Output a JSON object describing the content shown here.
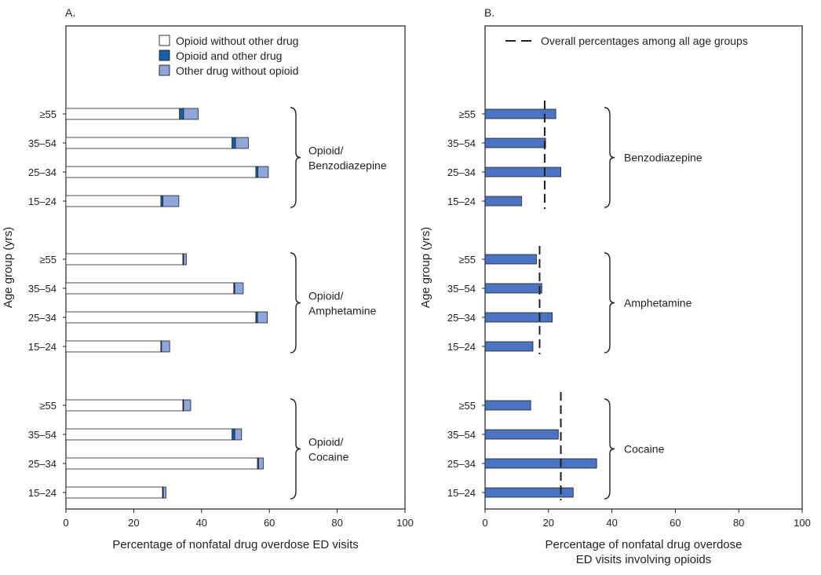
{
  "colors": {
    "opioid_only": "#ffffff",
    "opioid_and_other": "#1760a8",
    "other_only": "#8ea6d9",
    "bar_b": "#4a73c2",
    "stroke": "#231f20"
  },
  "chart_data": [
    {
      "type": "bar",
      "orientation": "horizontal",
      "stacked": true,
      "panel_label": "A.",
      "xlabel": "Percentage of nonfatal drug overdose ED visits",
      "ylabel": "Age group (yrs)",
      "xlim": [
        0,
        100
      ],
      "xticks": [
        0,
        20,
        40,
        60,
        80,
        100
      ],
      "legend": [
        {
          "key": "opioid_only",
          "label": "Opioid without other drug"
        },
        {
          "key": "opioid_and_other",
          "label": "Opioid and other drug"
        },
        {
          "key": "other_only",
          "label": "Other drug without opioid"
        }
      ],
      "groups": [
        {
          "label_lines": [
            "Opioid/",
            "Benzodiazepine"
          ],
          "categories": [
            "≥55",
            "35–54",
            "25–34",
            "15–24"
          ],
          "series": [
            {
              "name": "Opioid without other drug",
              "key": "opioid_only",
              "values": [
                33.5,
                49,
                56,
                28
              ]
            },
            {
              "name": "Opioid and other drug",
              "key": "opioid_and_other",
              "values": [
                1.2,
                1.0,
                0.6,
                0.6
              ]
            },
            {
              "name": "Other drug without opioid",
              "key": "other_only",
              "values": [
                4.3,
                3.8,
                3.1,
                4.7
              ]
            }
          ]
        },
        {
          "label_lines": [
            "Opioid/",
            "Amphetamine"
          ],
          "categories": [
            "≥55",
            "35–54",
            "25–34",
            "15–24"
          ],
          "series": [
            {
              "name": "Opioid without other drug",
              "key": "opioid_only",
              "values": [
                34.5,
                49.5,
                56,
                28
              ]
            },
            {
              "name": "Opioid and other drug",
              "key": "opioid_and_other",
              "values": [
                0.2,
                0.3,
                0.5,
                0.2
              ]
            },
            {
              "name": "Other drug without opioid",
              "key": "other_only",
              "values": [
                0.8,
                2.5,
                2.9,
                2.4
              ]
            }
          ]
        },
        {
          "label_lines": [
            "Opioid/",
            "Cocaine"
          ],
          "categories": [
            "≥55",
            "35–54",
            "25–34",
            "15–24"
          ],
          "series": [
            {
              "name": "Opioid without other drug",
              "key": "opioid_only",
              "values": [
                34.5,
                49,
                56.5,
                28.5
              ]
            },
            {
              "name": "Opioid and other drug",
              "key": "opioid_and_other",
              "values": [
                0.2,
                0.8,
                0.3,
                0.2
              ]
            },
            {
              "name": "Other drug without opioid",
              "key": "other_only",
              "values": [
                2.1,
                2.0,
                1.4,
                0.8
              ]
            }
          ]
        }
      ]
    },
    {
      "type": "bar",
      "orientation": "horizontal",
      "panel_label": "B.",
      "xlabel_lines": [
        "Percentage of nonfatal drug overdose",
        "ED visits involving opioids"
      ],
      "ylabel": "Age group (yrs)",
      "xlim": [
        0,
        100
      ],
      "xticks": [
        0,
        20,
        40,
        60,
        80,
        100
      ],
      "legend": [
        {
          "key": "overall",
          "label": "Overall percentages among all age groups"
        }
      ],
      "groups": [
        {
          "label": "Benzodiazepine",
          "categories": [
            "≥55",
            "35–54",
            "25–34",
            "15–24"
          ],
          "values": [
            22.3,
            19.1,
            23.9,
            11.5
          ],
          "overall": 18.8
        },
        {
          "label": "Amphetamine",
          "categories": [
            "≥55",
            "35–54",
            "25–34",
            "15–24"
          ],
          "values": [
            16.2,
            17.9,
            21.2,
            15.1
          ],
          "overall": 17.2
        },
        {
          "label": "Cocaine",
          "categories": [
            "≥55",
            "35–54",
            "25–34",
            "15–24"
          ],
          "values": [
            14.4,
            23.1,
            35.2,
            27.8
          ],
          "overall": 23.9
        }
      ]
    }
  ]
}
